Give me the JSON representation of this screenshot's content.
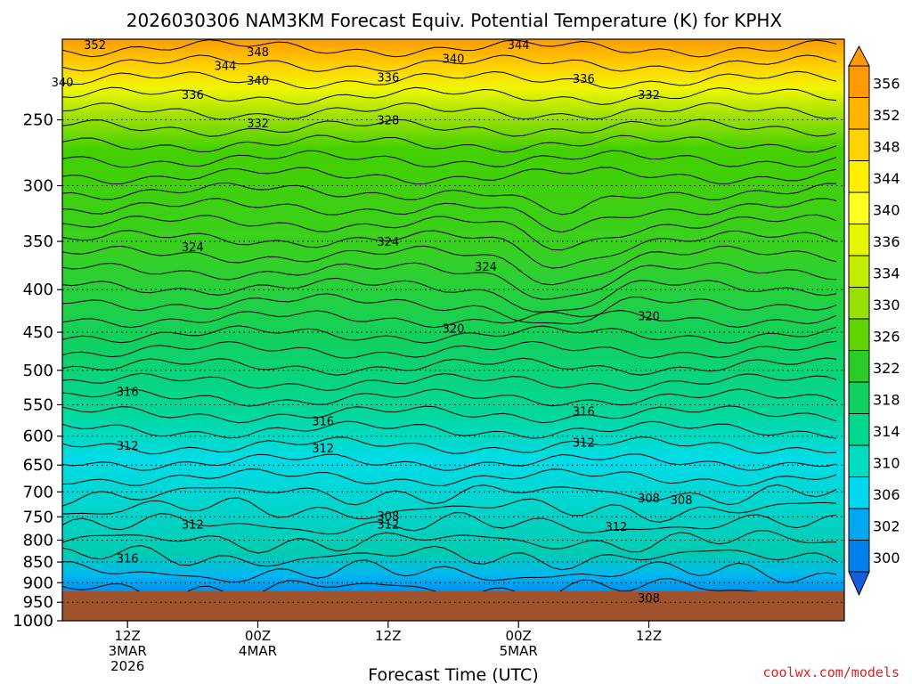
{
  "chart_data": {
    "type": "contour",
    "title": "2026030306 NAM3KM Forecast Equiv. Potential Temperature (K) for KPHX",
    "xlabel": "Forecast Time (UTC)",
    "ylabel": "",
    "y_scale": "log-pressure",
    "y_reversed": true,
    "grid": "dotted-horizontal",
    "ylim": [
      1000,
      200
    ],
    "yticks": [
      250,
      300,
      350,
      400,
      450,
      500,
      550,
      600,
      650,
      700,
      750,
      800,
      850,
      900,
      950,
      1000
    ],
    "xlim": [
      "2026-03-03T06Z",
      "2026-03-06T06Z"
    ],
    "xticks": [
      {
        "time": "2026-03-03T12Z",
        "lines": [
          "12Z",
          "3MAR",
          "2026"
        ]
      },
      {
        "time": "2026-03-04T00Z",
        "lines": [
          "00Z",
          "4MAR"
        ]
      },
      {
        "time": "2026-03-04T12Z",
        "lines": [
          "12Z"
        ]
      },
      {
        "time": "2026-03-05T00Z",
        "lines": [
          "00Z",
          "5MAR"
        ]
      },
      {
        "time": "2026-03-05T12Z",
        "lines": [
          "12Z"
        ]
      }
    ],
    "colorbar": {
      "units": "K",
      "labels": [
        356,
        352,
        348,
        344,
        340,
        336,
        334,
        330,
        326,
        322,
        318,
        314,
        310,
        306,
        302,
        300
      ],
      "colors": [
        "#ff9a00",
        "#ffb400",
        "#ffd200",
        "#ffee00",
        "#ffff20",
        "#e8f500",
        "#c4ec00",
        "#98e000",
        "#60d400",
        "#2ccc28",
        "#10d060",
        "#00d890",
        "#00dcc0",
        "#00d8f0",
        "#00a8f0",
        "#0080ea"
      ]
    },
    "contour_labels": [
      {
        "value": 352,
        "time": "2026-03-03T09Z",
        "p": 203
      },
      {
        "value": 348,
        "time": "2026-03-04T00Z",
        "p": 207
      },
      {
        "value": 344,
        "time": "2026-03-03T21Z",
        "p": 215
      },
      {
        "value": 344,
        "time": "2026-03-05T00Z",
        "p": 203
      },
      {
        "value": 340,
        "time": "2026-03-03T06Z",
        "p": 225
      },
      {
        "value": 340,
        "time": "2026-03-04T00Z",
        "p": 224
      },
      {
        "value": 340,
        "time": "2026-03-04T18Z",
        "p": 211
      },
      {
        "value": 336,
        "time": "2026-03-03T18Z",
        "p": 233
      },
      {
        "value": 336,
        "time": "2026-03-04T12Z",
        "p": 222
      },
      {
        "value": 336,
        "time": "2026-03-05T06Z",
        "p": 223
      },
      {
        "value": 332,
        "time": "2026-03-04T00Z",
        "p": 252
      },
      {
        "value": 332,
        "time": "2026-03-05T12Z",
        "p": 233
      },
      {
        "value": 328,
        "time": "2026-03-04T12Z",
        "p": 250
      },
      {
        "value": 324,
        "time": "2026-03-03T18Z",
        "p": 355
      },
      {
        "value": 324,
        "time": "2026-03-04T12Z",
        "p": 350
      },
      {
        "value": 324,
        "time": "2026-03-04T21Z",
        "p": 375
      },
      {
        "value": 320,
        "time": "2026-03-04T18Z",
        "p": 445
      },
      {
        "value": 320,
        "time": "2026-03-05T12Z",
        "p": 430
      },
      {
        "value": 316,
        "time": "2026-03-03T12Z",
        "p": 530
      },
      {
        "value": 316,
        "time": "2026-03-04T06Z",
        "p": 575
      },
      {
        "value": 316,
        "time": "2026-03-05T06Z",
        "p": 560
      },
      {
        "value": 312,
        "time": "2026-03-03T12Z",
        "p": 615
      },
      {
        "value": 312,
        "time": "2026-03-03T18Z",
        "p": 765
      },
      {
        "value": 312,
        "time": "2026-03-04T06Z",
        "p": 620
      },
      {
        "value": 312,
        "time": "2026-03-04T12Z",
        "p": 765
      },
      {
        "value": 312,
        "time": "2026-03-05T06Z",
        "p": 610
      },
      {
        "value": 312,
        "time": "2026-03-05T09Z",
        "p": 770
      },
      {
        "value": 316,
        "time": "2026-03-03T12Z",
        "p": 840
      },
      {
        "value": 308,
        "time": "2026-03-04T12Z",
        "p": 748
      },
      {
        "value": 308,
        "time": "2026-03-05T12Z",
        "p": 712
      },
      {
        "value": 308,
        "time": "2026-03-05T15Z",
        "p": 715
      },
      {
        "value": 308,
        "time": "2026-03-05T12Z",
        "p": 938
      }
    ]
  },
  "watermark": "coolwx.com/models"
}
